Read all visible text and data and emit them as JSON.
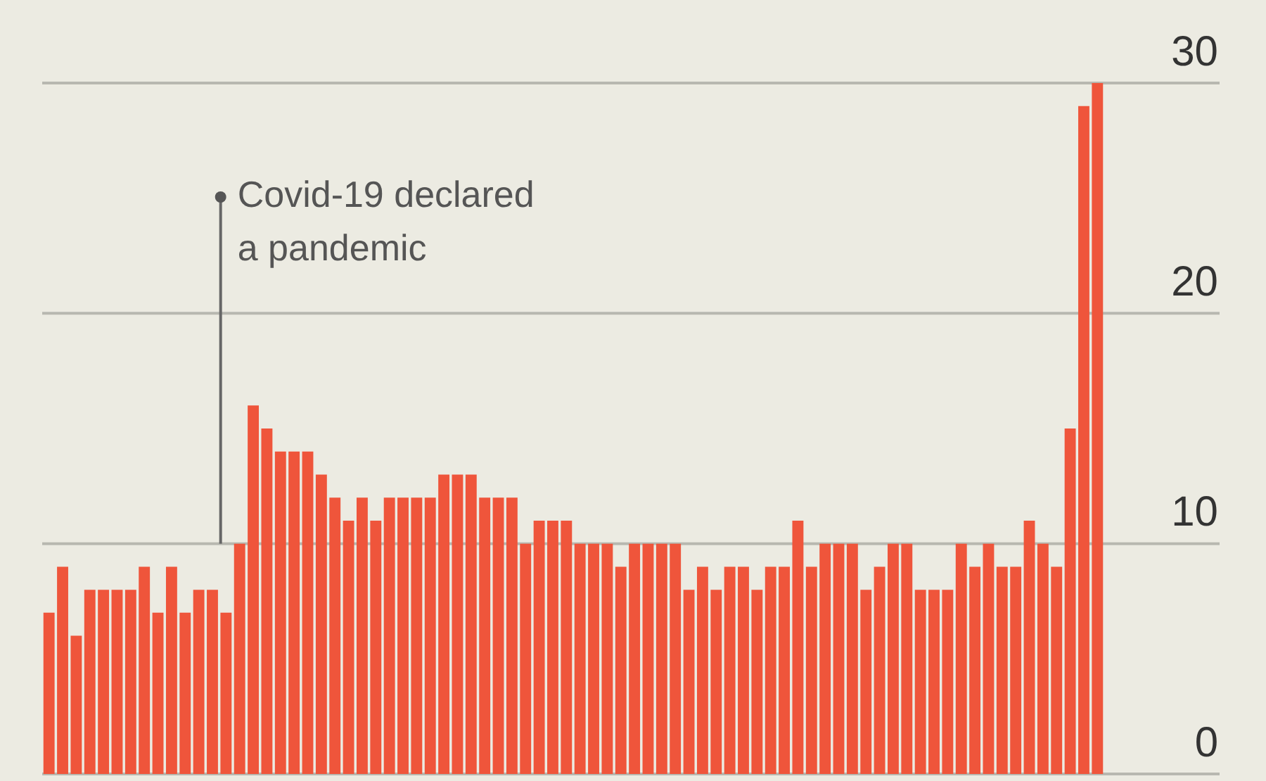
{
  "chart_data": {
    "type": "bar",
    "categories": [
      null,
      null,
      null,
      null,
      null,
      null,
      null,
      null,
      null,
      null,
      null,
      null,
      null,
      null,
      null,
      null,
      null,
      null,
      null,
      null,
      null,
      null,
      null,
      null,
      null,
      null,
      null,
      null,
      null,
      null,
      null,
      null,
      null,
      null,
      null,
      null,
      null,
      null,
      null,
      null,
      null,
      null,
      null,
      null,
      null,
      null,
      null,
      null,
      null,
      null,
      null,
      null,
      null,
      null,
      null,
      null,
      null,
      null,
      null,
      null,
      null,
      null,
      null,
      null,
      null,
      null,
      null,
      null,
      null,
      null,
      null,
      null,
      null,
      null,
      null,
      null,
      null,
      null
    ],
    "values": [
      7,
      9,
      6,
      8,
      8,
      8,
      8,
      9,
      7,
      9,
      7,
      8,
      8,
      7,
      10,
      16,
      15,
      14,
      14,
      14,
      13,
      12,
      11,
      12,
      11,
      12,
      12,
      12,
      12,
      13,
      13,
      13,
      12,
      12,
      12,
      10,
      11,
      11,
      11,
      10,
      10,
      10,
      9,
      10,
      10,
      10,
      10,
      8,
      9,
      8,
      9,
      9,
      8,
      9,
      9,
      11,
      9,
      10,
      10,
      10,
      8,
      9,
      10,
      10,
      8,
      8,
      8,
      10,
      9,
      10,
      9,
      9,
      11,
      10,
      9,
      15,
      29,
      30
    ],
    "color": "#ef553b",
    "ylim": [
      0,
      30
    ],
    "yticks": [
      0,
      10,
      20,
      30
    ],
    "grid": "y",
    "annotations": [
      "Covid-19 declared\na pandemic"
    ]
  }
}
